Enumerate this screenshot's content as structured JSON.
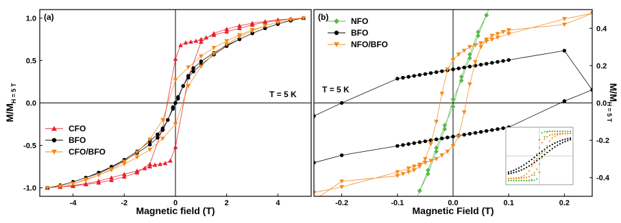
{
  "colors": {
    "CFO": "#e8212b",
    "NFO": "#59b84a",
    "BFO": "#000000",
    "CFO/BFO": "#f28a1c",
    "NFO/BFO": "#f28a1c",
    "axis": "#000000"
  },
  "chart_data": [
    {
      "type": "scatter",
      "panel_label": "(a)",
      "xlabel": "Magnetic field (T)",
      "ylabel": "M/M",
      "ylabel_sub": "H = 5 T",
      "annotation": "T = 5 K",
      "xlim": [
        -5.3,
        5.3
      ],
      "ylim": [
        -1.1,
        1.1
      ],
      "xticks": [
        -4,
        -2,
        0,
        2,
        4
      ],
      "yticks": [
        -1.0,
        -0.5,
        0.0,
        0.5,
        1.0
      ],
      "xtick_labels": [
        "-4",
        "-2",
        "0",
        "2",
        "4"
      ],
      "ytick_labels": [
        "-1.0",
        "-0.5",
        "0.0",
        "0.5",
        "1.0"
      ],
      "legend": {
        "position": "bottom-left",
        "entries": [
          "CFO",
          "BFO",
          "CFO/BFO"
        ]
      },
      "series": [
        {
          "name": "CFO",
          "marker": "triangle-up",
          "x": [
            -5.0,
            -4.5,
            -4.0,
            -3.5,
            -3.0,
            -2.5,
            -2.0,
            -1.5,
            -1.2,
            -1.0,
            -0.8,
            -0.6,
            -0.4,
            -0.2,
            0.0,
            0.5,
            1.0,
            1.5,
            2.0,
            2.5,
            3.0,
            3.5,
            4.0,
            4.5,
            5.0,
            4.5,
            4.0,
            3.5,
            3.0,
            2.5,
            2.0,
            1.5,
            1.2,
            1.0,
            0.8,
            0.6,
            0.4,
            0.2,
            0.0,
            -0.5,
            -1.0,
            -1.5,
            -2.0,
            -2.5,
            -3.0,
            -3.5,
            -4.0,
            -4.5,
            -5.0
          ],
          "y": [
            -1.0,
            -0.99,
            -0.97,
            -0.95,
            -0.92,
            -0.88,
            -0.84,
            -0.8,
            -0.77,
            -0.75,
            -0.73,
            -0.72,
            -0.71,
            -0.68,
            -0.52,
            0.3,
            0.72,
            0.82,
            0.87,
            0.91,
            0.94,
            0.96,
            0.98,
            0.99,
            1.0,
            0.99,
            0.97,
            0.95,
            0.92,
            0.88,
            0.84,
            0.8,
            0.77,
            0.75,
            0.73,
            0.72,
            0.71,
            0.68,
            0.52,
            -0.3,
            -0.72,
            -0.82,
            -0.87,
            -0.91,
            -0.94,
            -0.96,
            -0.98,
            -0.99,
            -1.0
          ]
        },
        {
          "name": "BFO",
          "marker": "circle",
          "x": [
            -5.0,
            -4.5,
            -4.0,
            -3.5,
            -3.0,
            -2.5,
            -2.0,
            -1.5,
            -1.0,
            -0.7,
            -0.5,
            -0.3,
            -0.1,
            0.0,
            0.1,
            0.3,
            0.5,
            0.7,
            1.0,
            1.5,
            2.0,
            2.5,
            3.0,
            3.5,
            4.0,
            4.5,
            5.0,
            4.5,
            4.0,
            3.5,
            3.0,
            2.5,
            2.0,
            1.5,
            1.0,
            0.7,
            0.5,
            0.3,
            0.1,
            0.0,
            -0.1,
            -0.3,
            -0.5,
            -0.7,
            -1.0,
            -1.5,
            -2.0,
            -2.5,
            -3.0,
            -3.5,
            -4.0,
            -4.5,
            -5.0
          ],
          "y": [
            -1.0,
            -0.97,
            -0.93,
            -0.88,
            -0.83,
            -0.76,
            -0.68,
            -0.59,
            -0.49,
            -0.41,
            -0.32,
            -0.2,
            -0.05,
            0.0,
            0.07,
            0.2,
            0.3,
            0.37,
            0.45,
            0.57,
            0.67,
            0.75,
            0.82,
            0.88,
            0.93,
            0.97,
            1.0,
            0.97,
            0.93,
            0.88,
            0.82,
            0.75,
            0.68,
            0.59,
            0.49,
            0.41,
            0.32,
            0.2,
            0.05,
            0.0,
            -0.07,
            -0.2,
            -0.3,
            -0.37,
            -0.45,
            -0.57,
            -0.67,
            -0.75,
            -0.82,
            -0.88,
            -0.93,
            -0.97,
            -1.0
          ]
        },
        {
          "name": "CFO/BFO",
          "marker": "triangle-down",
          "x": [
            -5.0,
            -4.5,
            -4.0,
            -3.5,
            -3.0,
            -2.5,
            -2.0,
            -1.5,
            -1.0,
            -0.5,
            0.0,
            0.5,
            1.0,
            1.5,
            2.0,
            2.5,
            3.0,
            3.5,
            4.0,
            4.5,
            5.0,
            4.5,
            4.0,
            3.5,
            3.0,
            2.5,
            2.0,
            1.5,
            1.0,
            0.5,
            0.0,
            -0.5,
            -1.0,
            -1.5,
            -2.0,
            -2.5,
            -3.0,
            -3.5,
            -4.0,
            -4.5,
            -5.0
          ],
          "y": [
            -1.0,
            -0.98,
            -0.95,
            -0.9,
            -0.85,
            -0.79,
            -0.72,
            -0.64,
            -0.55,
            -0.42,
            -0.25,
            0.2,
            0.43,
            0.58,
            0.69,
            0.78,
            0.85,
            0.91,
            0.95,
            0.98,
            1.0,
            0.98,
            0.95,
            0.91,
            0.86,
            0.8,
            0.73,
            0.65,
            0.55,
            0.42,
            0.27,
            -0.2,
            -0.43,
            -0.58,
            -0.69,
            -0.78,
            -0.85,
            -0.91,
            -0.95,
            -0.98,
            -1.0
          ]
        }
      ]
    },
    {
      "type": "scatter",
      "panel_label": "(b)",
      "xlabel": "Magnetic Field (T)",
      "ylabel": "M/M",
      "ylabel_sub": "H = 5 T",
      "annotation": "T = 5 K",
      "xlim": [
        -0.25,
        0.25
      ],
      "ylim": [
        -0.5,
        0.5
      ],
      "xticks": [
        -0.2,
        -0.1,
        0.0,
        0.1,
        0.2
      ],
      "yticks": [
        -0.4,
        -0.2,
        0.0,
        0.2,
        0.4
      ],
      "xtick_labels": [
        "-0.2",
        "-0.1",
        "0.0",
        "0.1",
        "0.2"
      ],
      "ytick_labels": [
        "-0.4",
        "-0.2",
        "0.0",
        "0.2",
        "0.4"
      ],
      "legend": {
        "position": "top-left",
        "entries": [
          "NFO",
          "BFO",
          "NFO/BFO"
        ]
      },
      "series": [
        {
          "name": "NFO",
          "marker": "diamond",
          "x": [
            -0.07,
            -0.06,
            -0.045,
            -0.03,
            -0.015,
            0.0,
            0.015,
            0.03,
            0.045,
            0.06,
            0.07,
            0.06,
            0.045,
            0.03,
            0.015,
            0.0,
            -0.015,
            -0.03,
            -0.045,
            -0.06,
            -0.07
          ],
          "y": [
            -0.55,
            -0.47,
            -0.36,
            -0.24,
            -0.12,
            -0.02,
            0.14,
            0.26,
            0.38,
            0.47,
            0.55,
            0.47,
            0.36,
            0.24,
            0.12,
            0.02,
            -0.14,
            -0.26,
            -0.38,
            -0.47,
            -0.55
          ]
        },
        {
          "name": "BFO",
          "marker": "circle",
          "x": [
            -0.25,
            -0.2,
            -0.1,
            -0.09,
            -0.08,
            -0.07,
            -0.06,
            -0.05,
            -0.04,
            -0.03,
            -0.02,
            -0.01,
            0.0,
            0.01,
            0.02,
            0.03,
            0.04,
            0.05,
            0.06,
            0.07,
            0.08,
            0.09,
            0.1,
            0.2,
            0.25,
            0.2,
            0.1,
            0.09,
            0.08,
            0.07,
            0.06,
            0.05,
            0.04,
            0.03,
            0.02,
            0.01,
            0.0,
            -0.01,
            -0.02,
            -0.03,
            -0.04,
            -0.05,
            -0.06,
            -0.07,
            -0.08,
            -0.09,
            -0.1,
            -0.2,
            -0.25
          ],
          "y": [
            -0.32,
            -0.28,
            -0.23,
            -0.225,
            -0.22,
            -0.215,
            -0.21,
            -0.205,
            -0.2,
            -0.195,
            -0.19,
            -0.185,
            -0.18,
            -0.175,
            -0.17,
            -0.165,
            -0.16,
            -0.155,
            -0.15,
            -0.145,
            -0.14,
            -0.135,
            -0.13,
            0.01,
            0.07,
            0.28,
            0.23,
            0.225,
            0.22,
            0.215,
            0.21,
            0.205,
            0.2,
            0.195,
            0.19,
            0.185,
            0.18,
            0.175,
            0.17,
            0.165,
            0.16,
            0.155,
            0.15,
            0.145,
            0.14,
            0.135,
            0.13,
            0.0,
            -0.07
          ]
        },
        {
          "name": "NFO/BFO",
          "marker": "triangle-down",
          "x": [
            -0.25,
            -0.2,
            -0.1,
            -0.09,
            -0.08,
            -0.07,
            -0.06,
            -0.05,
            -0.04,
            -0.03,
            -0.02,
            -0.01,
            0.0,
            0.01,
            0.02,
            0.03,
            0.04,
            0.05,
            0.06,
            0.07,
            0.08,
            0.1,
            0.2,
            0.25,
            0.2,
            0.1,
            0.09,
            0.08,
            0.07,
            0.06,
            0.05,
            0.04,
            0.03,
            0.02,
            0.01,
            0.0,
            -0.01,
            -0.02,
            -0.03,
            -0.04,
            -0.05,
            -0.06,
            -0.07,
            -0.08,
            -0.1,
            -0.2,
            -0.25
          ],
          "y": [
            -0.52,
            -0.42,
            -0.39,
            -0.38,
            -0.37,
            -0.36,
            -0.34,
            -0.3,
            -0.22,
            -0.1,
            0.05,
            0.18,
            0.23,
            0.26,
            0.28,
            0.3,
            0.31,
            0.32,
            0.33,
            0.34,
            0.35,
            0.37,
            0.45,
            0.48,
            0.42,
            0.39,
            0.38,
            0.37,
            0.36,
            0.34,
            0.3,
            0.22,
            0.1,
            -0.05,
            -0.18,
            -0.23,
            -0.26,
            -0.28,
            -0.3,
            -0.31,
            -0.32,
            -0.33,
            -0.34,
            -0.35,
            -0.37,
            -0.45,
            -0.48
          ]
        }
      ]
    }
  ]
}
